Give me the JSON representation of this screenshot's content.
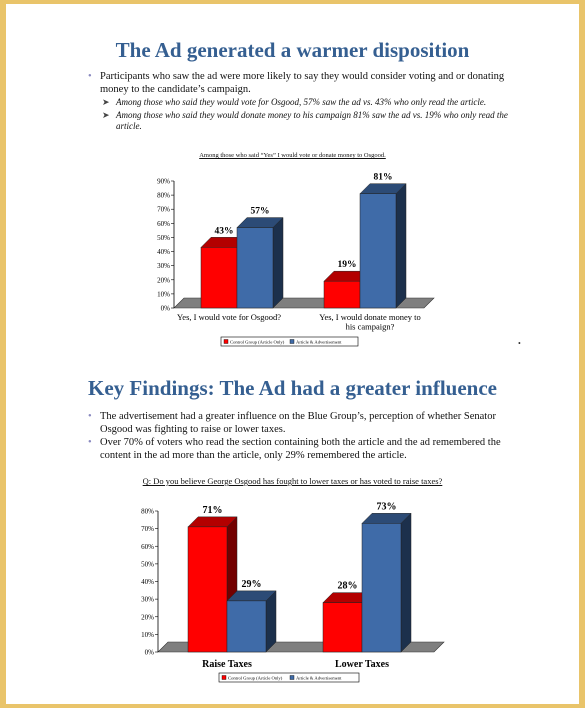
{
  "colors": {
    "title": "#355f91",
    "red": "#ff0000",
    "blue": "#3f6ba8",
    "border": "#e9c46a"
  },
  "slide1": {
    "title": "The Ad generated a warmer disposition",
    "bullet": "Participants who saw the ad were more likely to say they would consider voting and or donating money to the candidate’s campaign.",
    "subs": [
      "Among those who said they would vote for Osgood, 57% saw the ad vs. 43% who only read the article.",
      "Among those who said they would donate money to his campaign 81% saw the ad vs. 19% who only read the article."
    ],
    "chart_caption": "Among those who said “Yes” I would vote or donate money to Osgood."
  },
  "slide2": {
    "title": "Key Findings: The Ad had a greater influence",
    "bullets": [
      "The advertisement had a greater influence on the Blue Group’s, perception of  whether Senator Osgood was fighting to raise or lower taxes.",
      "Over 70% of voters who read the section containing both the article and the ad remembered the content in the ad more than the article, only 29% remembered the article."
    ],
    "chart_caption": "Q: Do you believe George Osgood has fought to lower taxes or has voted to raise taxes?"
  },
  "chart_data": [
    {
      "type": "bar",
      "title": "Among those who said “Yes” I would vote or donate money to Osgood.",
      "categories": [
        "Yes, I would vote for Osgood?",
        "Yes, I would donate money to his campaign?"
      ],
      "series": [
        {
          "name": "Control Group (Article Only)",
          "values": [
            43,
            19
          ],
          "color": "#ff0000"
        },
        {
          "name": "Article & Advertisement",
          "values": [
            57,
            81
          ],
          "color": "#3f6ba8"
        }
      ],
      "data_labels": [
        [
          "43%",
          "19%"
        ],
        [
          "57%",
          "81%"
        ]
      ],
      "yticks": [
        "0%",
        "10%",
        "20%",
        "30%",
        "40%",
        "50%",
        "60%",
        "70%",
        "80%",
        "90%"
      ],
      "ylim": [
        0,
        90
      ],
      "legend": "bottom",
      "grid": false
    },
    {
      "type": "bar",
      "title": "Q: Do you believe George Osgood has fought to lower taxes or has voted to raise taxes?",
      "categories": [
        "Raise Taxes",
        "Lower Taxes"
      ],
      "series": [
        {
          "name": "Control Group (Article Only)",
          "values": [
            71,
            28
          ],
          "color": "#ff0000"
        },
        {
          "name": "Article & Advertisement",
          "values": [
            29,
            73
          ],
          "color": "#3f6ba8"
        }
      ],
      "data_labels": [
        [
          "71%",
          "28%"
        ],
        [
          "29%",
          "73%"
        ]
      ],
      "yticks": [
        "0%",
        "10%",
        "20%",
        "30%",
        "40%",
        "50%",
        "60%",
        "70%",
        "80%"
      ],
      "ylim": [
        0,
        80
      ],
      "legend": "bottom",
      "grid": false
    }
  ]
}
